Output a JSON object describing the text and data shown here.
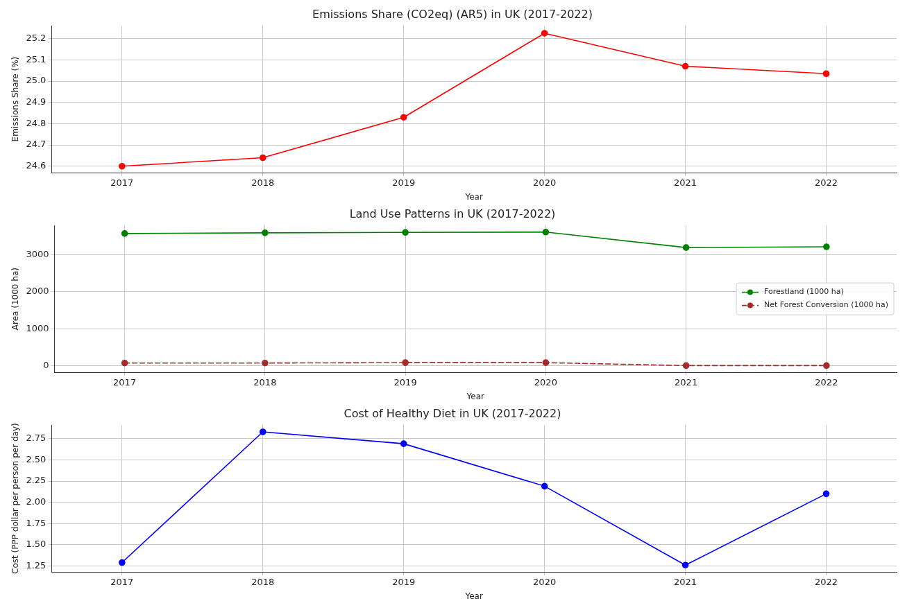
{
  "chart_data": [
    {
      "type": "line",
      "title": "Emissions Share (CO2eq) (AR5) in UK (2017-2022)",
      "xlabel": "Year",
      "ylabel": "Emissions Share (%)",
      "categories": [
        "2017",
        "2018",
        "2019",
        "2020",
        "2021",
        "2022"
      ],
      "series": [
        {
          "color": "#ff0000",
          "values": [
            24.6,
            24.64,
            24.83,
            25.225,
            25.07,
            25.035
          ]
        }
      ],
      "ylim": [
        24.57,
        25.26
      ],
      "yticks": [
        {
          "value": 24.6,
          "label": "24.6"
        },
        {
          "value": 24.7,
          "label": "24.7"
        },
        {
          "value": 24.8,
          "label": "24.8"
        },
        {
          "value": 24.9,
          "label": "24.9"
        },
        {
          "value": 25.0,
          "label": "25.0"
        },
        {
          "value": 25.1,
          "label": "25.1"
        },
        {
          "value": 25.2,
          "label": "25.2"
        }
      ],
      "grid": true,
      "marker": "circle",
      "line_style": "solid"
    },
    {
      "type": "line",
      "title": "Land Use Patterns in UK (2017-2022)",
      "xlabel": "Year",
      "ylabel": "Area (1000 ha)",
      "categories": [
        "2017",
        "2018",
        "2019",
        "2020",
        "2021",
        "2022"
      ],
      "series": [
        {
          "name": "Forestland (1000 ha)",
          "color": "#008000",
          "values": [
            3580,
            3600,
            3610,
            3620,
            3200,
            3220
          ]
        },
        {
          "name": "Net Forest Conversion (1000 ha)",
          "color": "#a52a2a",
          "line_style": "dashed",
          "values": [
            70,
            70,
            80,
            80,
            0,
            0
          ]
        }
      ],
      "ylim": [
        -180,
        3800
      ],
      "yticks": [
        0,
        1000,
        2000,
        3000
      ],
      "grid": true,
      "marker": "circle",
      "legend": "right"
    },
    {
      "type": "line",
      "title": "Cost of Healthy Diet in UK (2017-2022)",
      "xlabel": "Year",
      "ylabel": "Cost (PPP dollar per person per day)",
      "categories": [
        "2017",
        "2018",
        "2019",
        "2020",
        "2021",
        "2022"
      ],
      "series": [
        {
          "color": "#0000ff",
          "values": [
            1.29,
            2.83,
            2.69,
            2.19,
            1.26,
            2.1
          ]
        }
      ],
      "ylim": [
        1.18,
        2.91
      ],
      "yticks": [
        {
          "value": 1.25,
          "label": "1.25"
        },
        {
          "value": 1.5,
          "label": "1.50"
        },
        {
          "value": 1.75,
          "label": "1.75"
        },
        {
          "value": 2.0,
          "label": "2.00"
        },
        {
          "value": 2.25,
          "label": "2.25"
        },
        {
          "value": 2.5,
          "label": "2.50"
        },
        {
          "value": 2.75,
          "label": "2.75"
        }
      ],
      "grid": true,
      "marker": "circle",
      "line_style": "solid"
    }
  ]
}
